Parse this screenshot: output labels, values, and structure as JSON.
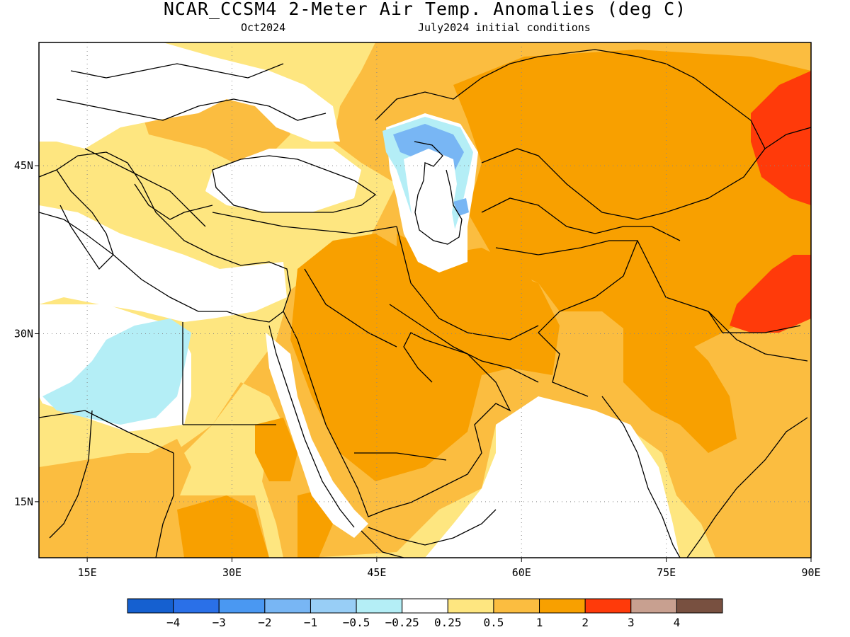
{
  "header": {
    "title": "NCAR_CCSM4 2-Meter Air Temp. Anomalies (deg C)",
    "valid": "Oct2024",
    "init": "July2024 initial conditions"
  },
  "map": {
    "region": {
      "lon_min": 10,
      "lon_max": 90,
      "lat_min": 10,
      "lat_max": 56
    },
    "grid": "dotted",
    "lon_ticks": [
      {
        "value": 15,
        "label": "15E"
      },
      {
        "value": 30,
        "label": "30E"
      },
      {
        "value": 45,
        "label": "45E"
      },
      {
        "value": 60,
        "label": "60E"
      },
      {
        "value": 75,
        "label": "75E"
      },
      {
        "value": 90,
        "label": "90E"
      }
    ],
    "lat_ticks": [
      {
        "value": 45,
        "label": "45N"
      },
      {
        "value": 30,
        "label": "30N"
      },
      {
        "value": 15,
        "label": "15N"
      }
    ]
  },
  "colorbar": {
    "colors": [
      "#1560d0",
      "#2a70e8",
      "#4a98f2",
      "#78b6f4",
      "#98cef6",
      "#b4eef6",
      "#ffffff",
      "#fee680",
      "#fbbd40",
      "#f8a000",
      "#ff3a0a",
      "#c8a090",
      "#785040"
    ],
    "labels": [
      "−4",
      "−3",
      "−2",
      "−1",
      "−0.5",
      "−0.25",
      "0.25",
      "0.5",
      "1",
      "2",
      "3",
      "4"
    ]
  }
}
